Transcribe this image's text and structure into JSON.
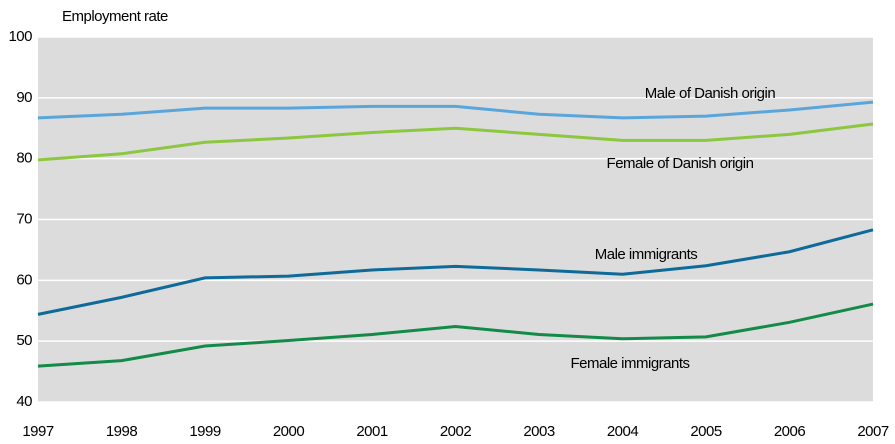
{
  "chart_data": {
    "type": "line",
    "y_label": "Employment rate",
    "x": [
      1997,
      1998,
      1999,
      2000,
      2001,
      2002,
      2003,
      2004,
      2005,
      2006,
      2007
    ],
    "xlim": [
      1997,
      2007
    ],
    "xticks": [
      1997,
      1998,
      1999,
      2000,
      2001,
      2002,
      2003,
      2004,
      2005,
      2006,
      2007
    ],
    "ylim": [
      40,
      100
    ],
    "yticks": [
      40,
      50,
      60,
      70,
      80,
      90,
      100
    ],
    "grid": true,
    "background": "#dcdcdc",
    "series": [
      {
        "name": "Male of Danish origin",
        "color": "#5aa6dc",
        "values": [
          86.7,
          87.3,
          88.3,
          88.3,
          88.6,
          88.6,
          87.3,
          86.7,
          87.0,
          88.0,
          89.3
        ]
      },
      {
        "name": "Female of Danish origin",
        "color": "#8dc63f",
        "values": [
          79.8,
          80.8,
          82.7,
          83.4,
          84.3,
          85.0,
          84.0,
          83.0,
          83.0,
          84.0,
          85.7
        ]
      },
      {
        "name": "Male immigrants",
        "color": "#0e6a99",
        "values": [
          54.4,
          57.2,
          60.4,
          60.7,
          61.7,
          62.3,
          61.7,
          61.0,
          62.4,
          64.7,
          68.3
        ]
      },
      {
        "name": "Female immigrants",
        "color": "#138a47",
        "values": [
          45.9,
          46.8,
          49.2,
          50.1,
          51.1,
          52.4,
          51.1,
          50.4,
          50.7,
          53.1,
          56.1
        ]
      }
    ]
  }
}
